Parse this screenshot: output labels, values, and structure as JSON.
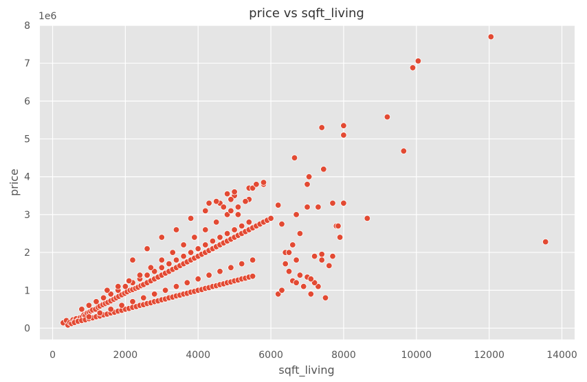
{
  "chart_data": {
    "type": "scatter",
    "title": "price vs sqft_living",
    "xlabel": "sqft_living",
    "ylabel": "price",
    "y_offset_label": "1e6",
    "xlim": [
      -350,
      14350
    ],
    "ylim": [
      -0.3,
      8.0
    ],
    "x_ticks": [
      0,
      2000,
      4000,
      6000,
      8000,
      10000,
      12000,
      14000
    ],
    "x_tick_labels": [
      "0",
      "2000",
      "4000",
      "6000",
      "8000",
      "10000",
      "12000",
      "14000"
    ],
    "y_ticks": [
      0,
      1,
      2,
      3,
      4,
      5,
      6,
      7,
      8
    ],
    "y_tick_labels": [
      "0",
      "1",
      "2",
      "3",
      "4",
      "5",
      "6",
      "7",
      "8"
    ],
    "grid": true,
    "legend": "none",
    "colors": {
      "background": "#e5e5e5",
      "grid": "#ffffff",
      "marker": "#e24a33",
      "marker_edge": "#ffffff"
    },
    "series": [
      {
        "x": [
          290,
          380,
          420,
          470,
          520,
          560,
          600,
          650,
          700,
          760,
          810,
          860,
          900,
          950,
          1000,
          1050,
          1100,
          1180,
          1250,
          1300,
          1380,
          1450,
          1520,
          1600,
          1680,
          1750,
          1820,
          1900,
          1980,
          2050,
          2130,
          2200,
          2280,
          2350,
          2430,
          2500,
          2600,
          2700,
          2800,
          2900,
          3000,
          3100,
          3200,
          3300,
          3400,
          3500,
          3600,
          3700,
          3800,
          3900,
          4000,
          4100,
          4200,
          4300,
          4400,
          4500,
          4600,
          4700,
          4800,
          4900,
          5000,
          5100,
          5200,
          5300,
          5400,
          5500,
          5600,
          5700,
          5800,
          5900,
          6000,
          600,
          700,
          800,
          900,
          1000,
          1100,
          1200,
          1300,
          1400,
          1500,
          1600,
          1700,
          1800,
          1900,
          2000,
          2100,
          2200,
          2300,
          2400,
          2500,
          2600,
          2700,
          2800,
          2900,
          3000,
          3100,
          3200,
          3300,
          3400,
          3500,
          3600,
          3700,
          3800,
          3900,
          4000,
          4100,
          4200,
          4300,
          4400,
          4500,
          4600,
          4700,
          4800,
          4900,
          5000,
          5100,
          5200,
          5300,
          5400,
          5500,
          800,
          1000,
          1200,
          1400,
          1600,
          1800,
          2000,
          2200,
          2400,
          2600,
          2800,
          3000,
          3200,
          3400,
          3600,
          3800,
          4000,
          4200,
          4400,
          4600,
          4800,
          5000,
          5200,
          5400,
          1000,
          1300,
          1600,
          1900,
          2200,
          2500,
          2800,
          3100,
          3400,
          3700,
          4000,
          4300,
          4600,
          4900,
          5200,
          5500,
          1500,
          1800,
          2100,
          2400,
          2700,
          3000,
          3300,
          3600,
          3900,
          4200,
          4500,
          4800,
          5100,
          5400,
          2200,
          2600,
          3000,
          3400,
          3800,
          4200,
          4600,
          5000,
          5400,
          5800,
          6200,
          6300,
          6400,
          6500,
          6600,
          6700,
          6800,
          6900,
          7000,
          7100,
          7200,
          7300,
          7400,
          7500,
          7600,
          7700,
          7800,
          7900,
          8000,
          6200,
          6400,
          6600,
          6800,
          7000,
          7200,
          7400,
          6300,
          6500,
          6700,
          6900,
          7100,
          4800,
          4900,
          5000,
          5500,
          5600,
          5800,
          4300,
          4500,
          4700,
          4900,
          5100,
          5300,
          6650,
          6700,
          7000,
          7050,
          7300,
          7450,
          7700,
          7850,
          8000,
          8000,
          8650,
          7400,
          8000,
          8000,
          9200,
          9650,
          9900,
          10050,
          12050,
          13550
        ],
        "y": [
          0.14,
          0.2,
          0.08,
          0.15,
          0.12,
          0.22,
          0.18,
          0.25,
          0.2,
          0.28,
          0.3,
          0.35,
          0.33,
          0.4,
          0.42,
          0.45,
          0.48,
          0.5,
          0.55,
          0.58,
          0.62,
          0.65,
          0.68,
          0.72,
          0.76,
          0.8,
          0.84,
          0.88,
          0.92,
          0.96,
          1.0,
          1.02,
          1.05,
          1.08,
          1.12,
          1.15,
          1.2,
          1.25,
          1.3,
          1.35,
          1.4,
          1.45,
          1.5,
          1.55,
          1.6,
          1.65,
          1.7,
          1.75,
          1.8,
          1.85,
          1.9,
          1.95,
          2.0,
          2.05,
          2.1,
          2.15,
          2.2,
          2.25,
          2.3,
          2.35,
          2.4,
          2.45,
          2.5,
          2.55,
          2.6,
          2.65,
          2.7,
          2.75,
          2.8,
          2.85,
          2.9,
          0.15,
          0.18,
          0.2,
          0.22,
          0.25,
          0.27,
          0.3,
          0.32,
          0.35,
          0.37,
          0.4,
          0.42,
          0.45,
          0.47,
          0.5,
          0.52,
          0.55,
          0.57,
          0.6,
          0.62,
          0.65,
          0.67,
          0.7,
          0.72,
          0.75,
          0.77,
          0.8,
          0.82,
          0.85,
          0.87,
          0.9,
          0.92,
          0.95,
          0.97,
          1.0,
          1.02,
          1.05,
          1.07,
          1.1,
          1.12,
          1.15,
          1.17,
          1.2,
          1.22,
          1.25,
          1.27,
          1.3,
          1.32,
          1.35,
          1.37,
          0.5,
          0.6,
          0.7,
          0.8,
          0.9,
          1.0,
          1.1,
          1.2,
          1.3,
          1.4,
          1.5,
          1.6,
          1.7,
          1.8,
          1.9,
          2.0,
          2.1,
          2.2,
          2.3,
          2.4,
          2.5,
          2.6,
          2.7,
          2.8,
          0.3,
          0.4,
          0.5,
          0.6,
          0.7,
          0.8,
          0.9,
          1.0,
          1.1,
          1.2,
          1.3,
          1.4,
          1.5,
          1.6,
          1.7,
          1.8,
          1.0,
          1.1,
          1.25,
          1.4,
          1.6,
          1.8,
          2.0,
          2.2,
          2.4,
          2.6,
          2.8,
          3.0,
          3.2,
          3.4,
          1.8,
          2.1,
          2.4,
          2.6,
          2.9,
          3.1,
          3.3,
          3.5,
          3.7,
          3.8,
          3.25,
          2.75,
          2.0,
          1.5,
          1.25,
          1.2,
          1.4,
          1.1,
          3.2,
          0.9,
          1.9,
          1.1,
          1.95,
          0.8,
          1.65,
          1.9,
          2.7,
          2.4,
          3.3,
          0.9,
          1.7,
          2.2,
          2.5,
          1.35,
          1.2,
          1.8,
          1.0,
          2.0,
          1.8,
          1.1,
          1.3,
          3.55,
          3.4,
          3.6,
          3.7,
          3.8,
          3.85,
          3.3,
          3.35,
          3.2,
          3.1,
          3.0,
          3.35,
          4.5,
          3.0,
          3.8,
          4.0,
          3.2,
          4.2,
          3.3,
          2.7,
          5.1,
          5.35,
          2.9,
          5.3,
          5.35,
          5.1,
          5.58,
          4.68,
          6.88,
          7.06,
          7.7,
          2.28
        ]
      }
    ]
  }
}
